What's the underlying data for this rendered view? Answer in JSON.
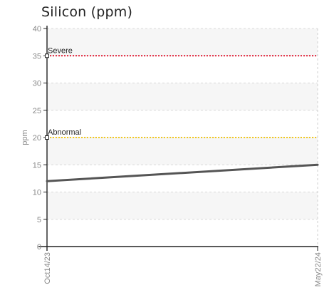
{
  "chart_data": {
    "type": "line",
    "title": "Silicon (ppm)",
    "xlabel": "",
    "ylabel": "ppm",
    "ylim": [
      0,
      40
    ],
    "y_ticks": [
      0,
      5,
      10,
      15,
      20,
      25,
      30,
      35,
      40
    ],
    "x_categories": [
      "Oct14/23",
      "May22/24"
    ],
    "grid": true,
    "series": [
      {
        "values": [
          12,
          15
        ],
        "color": "#555555"
      }
    ],
    "thresholds": [
      {
        "label": "Severe",
        "value": 35,
        "color": "#e0001b"
      },
      {
        "label": "Abnormal",
        "value": 20,
        "color": "#f2c200"
      }
    ]
  }
}
